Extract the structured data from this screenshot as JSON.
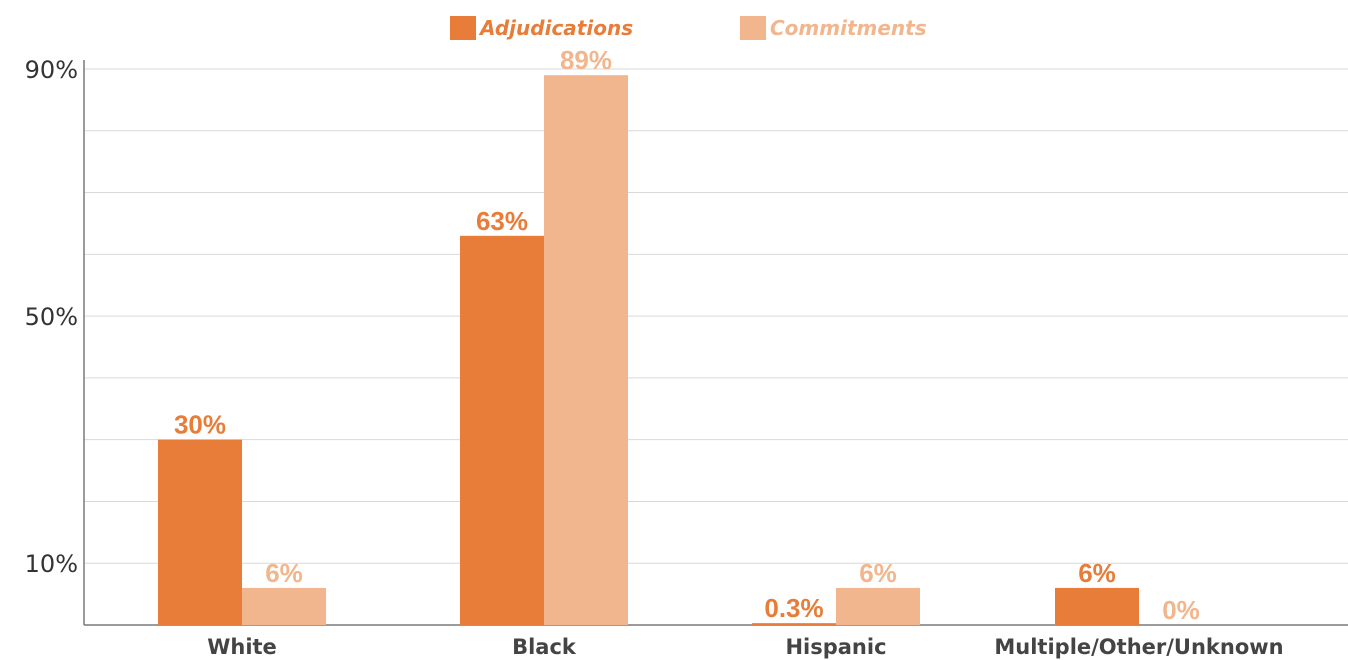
{
  "chart_data": {
    "type": "bar",
    "categories": [
      "White",
      "Black",
      "Hispanic",
      "Multiple/Other/Unknown"
    ],
    "series": [
      {
        "name": "Adjudications",
        "values": [
          30,
          63,
          0.3,
          6
        ],
        "labels": [
          "30%",
          "63%",
          "0.3%",
          "6%"
        ],
        "color": "#E87D3A"
      },
      {
        "name": "Commitments",
        "values": [
          6,
          89,
          6,
          0
        ],
        "labels": [
          "6%",
          "89%",
          "6%",
          "0%"
        ],
        "color": "#F2B68E"
      }
    ],
    "yticks": [
      {
        "value": 10,
        "label": "10%"
      },
      {
        "value": 50,
        "label": "50%"
      },
      {
        "value": 90,
        "label": "90%"
      }
    ],
    "ylim": [
      0,
      90
    ],
    "gridlines": [
      10,
      20,
      30,
      40,
      50,
      60,
      70,
      80,
      90
    ],
    "grid": true,
    "legend_position": "top-center",
    "title": "",
    "xlabel": "",
    "ylabel": ""
  }
}
